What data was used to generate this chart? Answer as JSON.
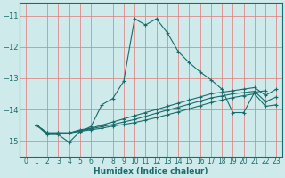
{
  "xlabel": "Humidex (Indice chaleur)",
  "ylabel": "",
  "bg_color": "#ceeaea",
  "line_color": "#1a6b6b",
  "grid_color": "#e08888",
  "xlim": [
    -0.5,
    23.5
  ],
  "ylim": [
    -15.5,
    -10.6
  ],
  "yticks": [
    -15,
    -14,
    -13,
    -12,
    -11
  ],
  "xticks": [
    0,
    1,
    2,
    3,
    4,
    5,
    6,
    7,
    8,
    9,
    10,
    11,
    12,
    13,
    14,
    15,
    16,
    17,
    18,
    19,
    20,
    21,
    22,
    23
  ],
  "series": [
    {
      "x": [
        1,
        2,
        3,
        4,
        5,
        6,
        7,
        8,
        9,
        10,
        11,
        12,
        13,
        14,
        15,
        16,
        17,
        18,
        19,
        20,
        21,
        22
      ],
      "y": [
        -14.5,
        -14.8,
        -14.8,
        -15.05,
        -14.7,
        -14.55,
        -13.85,
        -13.65,
        -13.1,
        -11.1,
        -11.3,
        -11.1,
        -11.55,
        -12.15,
        -12.5,
        -12.8,
        -13.05,
        -13.35,
        -14.1,
        -14.1,
        -13.45,
        -13.4
      ]
    },
    {
      "x": [
        1,
        2,
        3,
        4,
        5,
        6,
        7,
        8,
        9,
        10,
        11,
        12,
        13,
        14,
        15,
        16,
        17,
        18,
        19,
        20,
        21,
        22,
        23
      ],
      "y": [
        -14.5,
        -14.75,
        -14.75,
        -14.75,
        -14.65,
        -14.6,
        -14.5,
        -14.4,
        -14.3,
        -14.2,
        -14.1,
        -14.0,
        -13.9,
        -13.8,
        -13.7,
        -13.6,
        -13.5,
        -13.45,
        -13.4,
        -13.35,
        -13.3,
        -13.55,
        -13.35
      ]
    },
    {
      "x": [
        1,
        2,
        3,
        4,
        5,
        6,
        7,
        8,
        9,
        10,
        11,
        12,
        13,
        14,
        15,
        16,
        17,
        18,
        19,
        20,
        21,
        22,
        23
      ],
      "y": [
        -14.5,
        -14.75,
        -14.75,
        -14.75,
        -14.68,
        -14.62,
        -14.55,
        -14.48,
        -14.4,
        -14.32,
        -14.22,
        -14.12,
        -14.02,
        -13.93,
        -13.83,
        -13.73,
        -13.63,
        -13.57,
        -13.5,
        -13.46,
        -13.42,
        -13.75,
        -13.6
      ]
    },
    {
      "x": [
        1,
        2,
        3,
        4,
        5,
        6,
        7,
        8,
        9,
        10,
        11,
        12,
        13,
        14,
        15,
        16,
        17,
        18,
        19,
        20,
        21,
        22,
        23
      ],
      "y": [
        -14.5,
        -14.75,
        -14.75,
        -14.75,
        -14.7,
        -14.65,
        -14.6,
        -14.53,
        -14.48,
        -14.42,
        -14.34,
        -14.26,
        -14.17,
        -14.08,
        -13.98,
        -13.88,
        -13.78,
        -13.7,
        -13.62,
        -13.56,
        -13.5,
        -13.9,
        -13.85
      ]
    }
  ]
}
